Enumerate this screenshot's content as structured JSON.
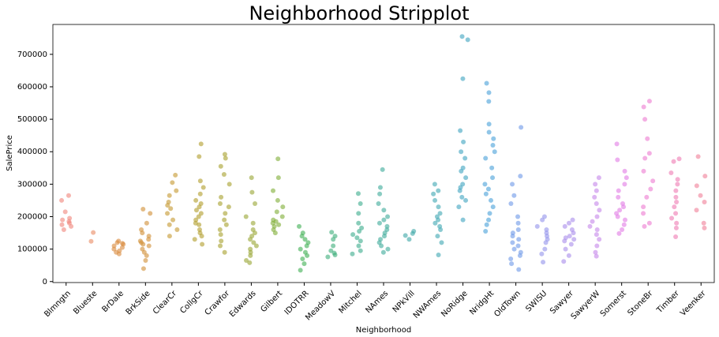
{
  "chart_data": {
    "type": "strip",
    "title": "Neighborhood Stripplot",
    "x_label": "Neighborhood",
    "y_label": "SalePrice",
    "categories": [
      "Blmngtn",
      "Blueste",
      "BrDale",
      "BrkSide",
      "ClearCr",
      "CollgCr",
      "Crawfor",
      "Edwards",
      "Gilbert",
      "IDOTRR",
      "MeadowV",
      "Mitchel",
      "NAmes",
      "NPkVill",
      "NWAmes",
      "NoRidge",
      "NridgHt",
      "OldTown",
      "SWISU",
      "Sawyer",
      "SawyerW",
      "Somerst",
      "StoneBr",
      "Timber",
      "Veenker"
    ],
    "colors": [
      "#f0847a",
      "#e98a62",
      "#d9893a",
      "#d08e33",
      "#c4972e",
      "#b19c2a",
      "#a6a02c",
      "#98a532",
      "#7fae35",
      "#3daf52",
      "#3cae7a",
      "#3bab8c",
      "#3caa9a",
      "#3ca7a6",
      "#3da6b2",
      "#3ea4c0",
      "#48a0d8",
      "#6c98e8",
      "#9392eb",
      "#a98ceb",
      "#c485ea",
      "#e17ae5",
      "#ec7ad0",
      "#ef7ab2",
      "#f07e97"
    ],
    "values": [
      [
        265000,
        250000,
        215000,
        195000,
        190000,
        180000,
        175000,
        170000,
        160000,
        185000
      ],
      [
        151000,
        124000
      ],
      [
        125000,
        120000,
        115000,
        110000,
        105000,
        100000,
        95000,
        90000,
        85000,
        118000
      ],
      [
        223000,
        210000,
        180000,
        160000,
        150000,
        140000,
        130000,
        125000,
        120000,
        115000,
        110000,
        100000,
        90000,
        80000,
        65000,
        40000
      ],
      [
        328000,
        305000,
        280000,
        265000,
        245000,
        235000,
        225000,
        210000,
        190000,
        175000,
        160000,
        140000
      ],
      [
        424000,
        385000,
        310000,
        290000,
        270000,
        250000,
        240000,
        230000,
        220000,
        210000,
        200000,
        190000,
        180000,
        175000,
        160000,
        150000,
        140000,
        130000,
        115000
      ],
      [
        392000,
        380000,
        355000,
        330000,
        300000,
        260000,
        240000,
        230000,
        210000,
        190000,
        175000,
        160000,
        145000,
        125000,
        110000,
        90000
      ],
      [
        320000,
        275000,
        240000,
        200000,
        180000,
        160000,
        150000,
        140000,
        130000,
        120000,
        110000,
        100000,
        90000,
        80000,
        65000,
        58000
      ],
      [
        378000,
        320000,
        280000,
        250000,
        230000,
        215000,
        200000,
        190000,
        185000,
        180000,
        175000,
        170000,
        160000,
        150000
      ],
      [
        170000,
        150000,
        140000,
        130000,
        120000,
        110000,
        100000,
        90000,
        80000,
        70000,
        55000,
        35000
      ],
      [
        152000,
        140000,
        130000,
        110000,
        95000,
        88000,
        82000,
        76000
      ],
      [
        271000,
        240000,
        210000,
        180000,
        165000,
        155000,
        145000,
        135000,
        125000,
        110000,
        95000,
        85000
      ],
      [
        345000,
        290000,
        270000,
        240000,
        220000,
        200000,
        190000,
        180000,
        170000,
        160000,
        150000,
        140000,
        130000,
        120000,
        110000,
        100000,
        90000
      ],
      [
        155000,
        148000,
        142000,
        130000
      ],
      [
        300000,
        280000,
        270000,
        250000,
        230000,
        210000,
        200000,
        190000,
        180000,
        170000,
        160000,
        140000,
        120000,
        82000
      ],
      [
        755000,
        745000,
        625000,
        465000,
        430000,
        400000,
        380000,
        350000,
        340000,
        320000,
        300000,
        290000,
        280000,
        260000,
        250000,
        230000,
        190000
      ],
      [
        611000,
        582000,
        555000,
        485000,
        460000,
        440000,
        420000,
        400000,
        380000,
        350000,
        320000,
        300000,
        285000,
        270000,
        250000,
        230000,
        210000,
        190000,
        175000,
        155000
      ],
      [
        475000,
        325000,
        300000,
        265000,
        240000,
        200000,
        180000,
        160000,
        150000,
        140000,
        130000,
        120000,
        110000,
        100000,
        90000,
        80000,
        70000,
        55000,
        37000
      ],
      [
        200000,
        190000,
        170000,
        160000,
        150000,
        140000,
        130000,
        120000,
        100000,
        85000,
        60000
      ],
      [
        190000,
        180000,
        170000,
        160000,
        150000,
        140000,
        135000,
        130000,
        125000,
        115000,
        100000,
        80000,
        62000
      ],
      [
        320000,
        300000,
        280000,
        260000,
        240000,
        220000,
        200000,
        185000,
        170000,
        160000,
        145000,
        130000,
        110000,
        90000,
        78000
      ],
      [
        424000,
        375000,
        340000,
        320000,
        300000,
        280000,
        260000,
        240000,
        230000,
        220000,
        210000,
        200000,
        190000,
        175000,
        160000,
        148000
      ],
      [
        556000,
        538000,
        500000,
        440000,
        395000,
        380000,
        340000,
        310000,
        285000,
        260000,
        230000,
        210000,
        180000,
        170000
      ],
      [
        378000,
        370000,
        335000,
        315000,
        300000,
        280000,
        260000,
        245000,
        230000,
        210000,
        195000,
        180000,
        165000,
        138000
      ],
      [
        385000,
        325000,
        295000,
        265000,
        245000,
        220000,
        180000,
        165000
      ]
    ],
    "ylim": [
      -3000,
      792000
    ],
    "yticks": [
      0,
      100000,
      200000,
      300000,
      400000,
      500000,
      600000,
      700000
    ]
  }
}
